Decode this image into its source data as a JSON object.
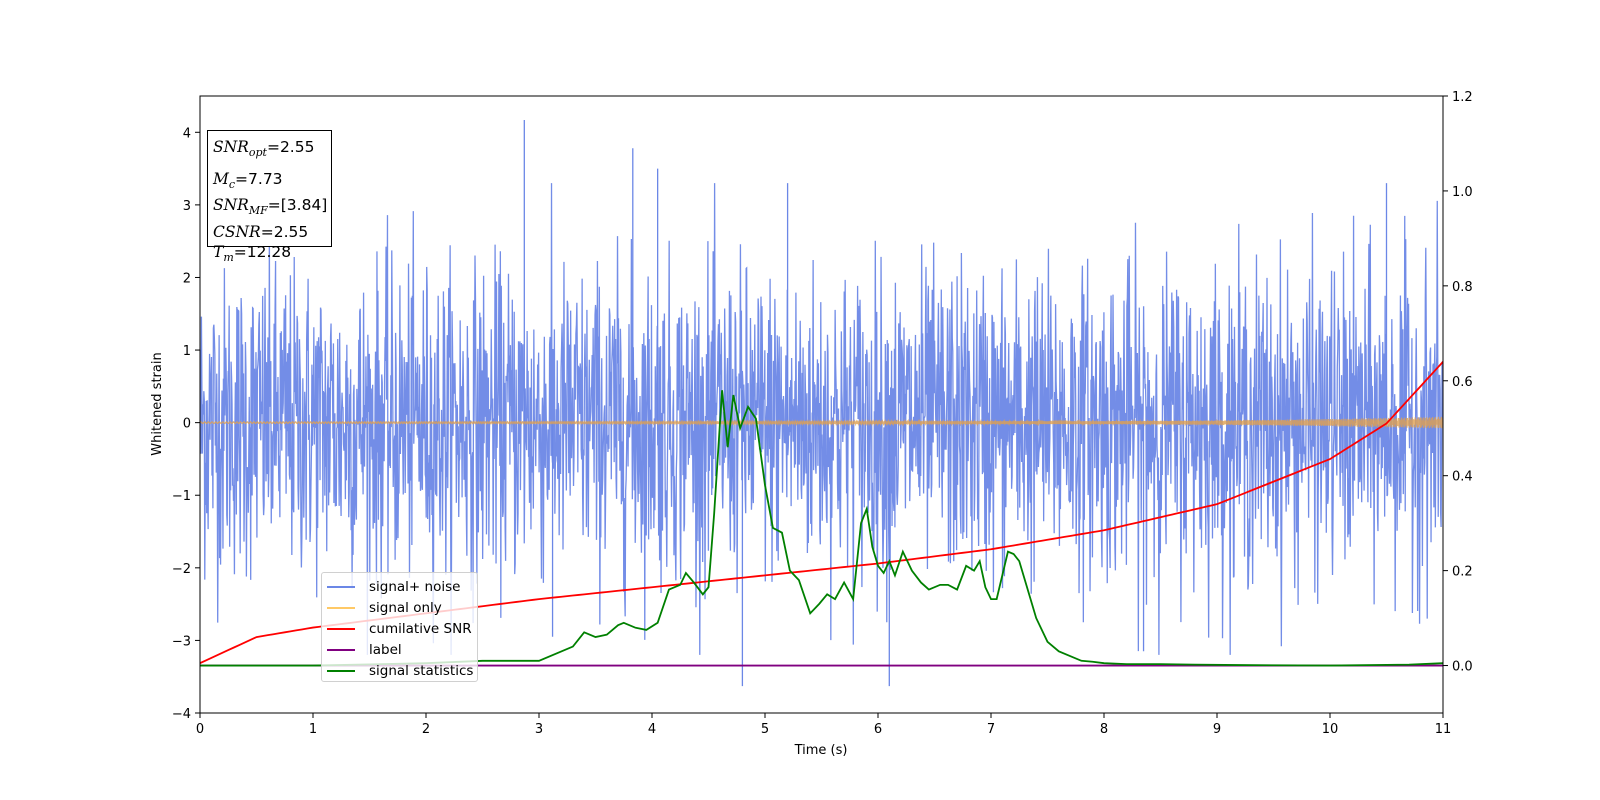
{
  "chart_data": {
    "type": "line",
    "xlabel": "Time (s)",
    "ylabel": "Whitened strain",
    "xlim": [
      0,
      11
    ],
    "ylim_left": [
      -4,
      4.5
    ],
    "ylim_right": [
      -0.1,
      1.2
    ],
    "x_ticks": [
      "0",
      "1",
      "2",
      "3",
      "4",
      "5",
      "6",
      "7",
      "8",
      "9",
      "10",
      "11"
    ],
    "y_ticks_left": [
      "−4",
      "−3",
      "−2",
      "−1",
      "0",
      "1",
      "2",
      "3",
      "4"
    ],
    "y_ticks_right": [
      "0.0",
      "0.2",
      "0.4",
      "0.6",
      "0.8",
      "1.0",
      "1.2"
    ],
    "info_box": {
      "snr_opt": "=2.55",
      "mc": "=7.73",
      "snr_mf": "=[3.84]",
      "csnr": "=2.55",
      "tm": "=12.28"
    },
    "series": [
      {
        "name": "signal+ noise",
        "color": "#6b87e6",
        "axis": "left",
        "description_values": {
          "mean": 0,
          "std": 1.0,
          "max": 4.17,
          "min": -3.63
        }
      },
      {
        "name": "signal only",
        "color": "#ffa500",
        "axis": "left",
        "envelope": [
          [
            0,
            0.01
          ],
          [
            8,
            0.02
          ],
          [
            9,
            0.03
          ],
          [
            10,
            0.05
          ],
          [
            11,
            0.08
          ]
        ]
      },
      {
        "name": "cumilative SNR",
        "color": "#ff0000",
        "axis": "right",
        "x": [
          0,
          0.5,
          1,
          2,
          3,
          4,
          5,
          6,
          7,
          8,
          9,
          10,
          10.5,
          11
        ],
        "y": [
          0.005,
          0.06,
          0.08,
          0.11,
          0.14,
          0.165,
          0.19,
          0.215,
          0.245,
          0.285,
          0.34,
          0.435,
          0.51,
          0.64
        ]
      },
      {
        "name": "label",
        "color": "#800080",
        "axis": "right",
        "x": [
          0,
          11
        ],
        "y": [
          0.0,
          0.0
        ]
      },
      {
        "name": "signal statistics",
        "color": "#008000",
        "axis": "right",
        "x": [
          0,
          1,
          2,
          2.5,
          3,
          3.2,
          3.3,
          3.4,
          3.5,
          3.6,
          3.7,
          3.75,
          3.85,
          3.95,
          4.05,
          4.15,
          4.25,
          4.3,
          4.37,
          4.45,
          4.5,
          4.55,
          4.62,
          4.67,
          4.72,
          4.78,
          4.85,
          4.92,
          5.0,
          5.07,
          5.15,
          5.22,
          5.3,
          5.4,
          5.48,
          5.55,
          5.62,
          5.7,
          5.78,
          5.85,
          5.9,
          5.95,
          6.0,
          6.05,
          6.1,
          6.15,
          6.22,
          6.3,
          6.38,
          6.45,
          6.55,
          6.62,
          6.7,
          6.78,
          6.85,
          6.9,
          6.95,
          7.0,
          7.05,
          7.1,
          7.15,
          7.2,
          7.25,
          7.3,
          7.4,
          7.5,
          7.6,
          7.7,
          7.8,
          7.9,
          8.0,
          8.2,
          8.5,
          8.8,
          9.2,
          10,
          10.7,
          11
        ],
        "y": [
          0.0,
          0.0,
          0.005,
          0.01,
          0.01,
          0.03,
          0.04,
          0.07,
          0.06,
          0.065,
          0.085,
          0.09,
          0.08,
          0.075,
          0.09,
          0.16,
          0.17,
          0.195,
          0.175,
          0.15,
          0.165,
          0.32,
          0.58,
          0.46,
          0.57,
          0.5,
          0.545,
          0.52,
          0.38,
          0.29,
          0.28,
          0.2,
          0.18,
          0.11,
          0.13,
          0.15,
          0.14,
          0.175,
          0.14,
          0.3,
          0.33,
          0.25,
          0.21,
          0.195,
          0.22,
          0.19,
          0.24,
          0.2,
          0.175,
          0.16,
          0.17,
          0.17,
          0.16,
          0.21,
          0.2,
          0.22,
          0.165,
          0.14,
          0.14,
          0.19,
          0.24,
          0.235,
          0.22,
          0.18,
          0.1,
          0.05,
          0.03,
          0.02,
          0.01,
          0.008,
          0.005,
          0.003,
          0.003,
          0.002,
          0.001,
          0.0,
          0.002,
          0.005
        ]
      }
    ]
  }
}
